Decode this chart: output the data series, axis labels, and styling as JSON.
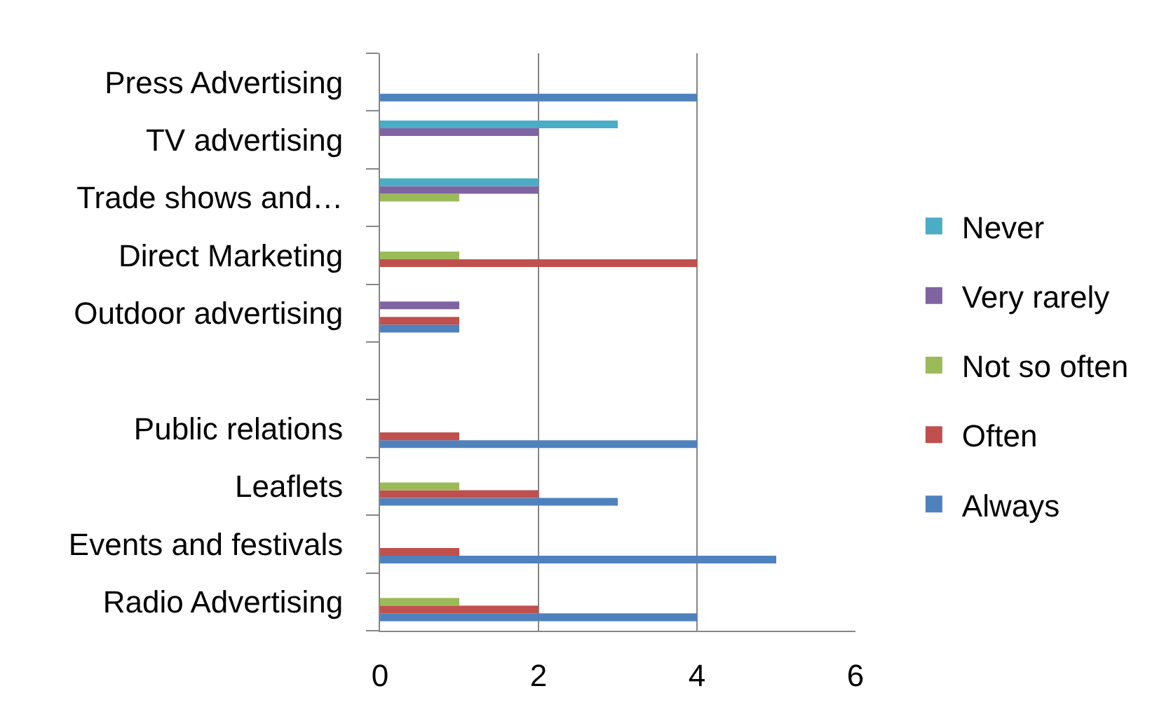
{
  "chart_data": {
    "type": "bar",
    "orientation": "horizontal",
    "categories": [
      "Press Advertising",
      "TV advertising",
      "Trade shows and…",
      "Direct Marketing",
      "Outdoor advertising",
      null,
      "Public relations",
      "Leaflets",
      "Events and festivals",
      "Radio Advertising"
    ],
    "series": [
      {
        "name": "Always",
        "color": "#4f81bd",
        "values": [
          4,
          null,
          null,
          null,
          1,
          null,
          4,
          3,
          5,
          4
        ]
      },
      {
        "name": "Often",
        "color": "#c0504d",
        "values": [
          null,
          null,
          null,
          4,
          1,
          null,
          1,
          2,
          1,
          2
        ]
      },
      {
        "name": "Not so often",
        "color": "#9bbb59",
        "values": [
          null,
          null,
          1,
          1,
          null,
          null,
          null,
          1,
          null,
          1
        ]
      },
      {
        "name": "Very rarely",
        "color": "#8064a2",
        "values": [
          null,
          2,
          2,
          null,
          1,
          null,
          null,
          null,
          null,
          null
        ]
      },
      {
        "name": "Never",
        "color": "#4bacc6",
        "values": [
          null,
          3,
          2,
          null,
          null,
          null,
          null,
          null,
          null,
          null
        ]
      }
    ],
    "xlim": [
      0,
      6
    ],
    "xticks": [
      0,
      2,
      4,
      6
    ],
    "grid": "x",
    "legend": "right"
  }
}
